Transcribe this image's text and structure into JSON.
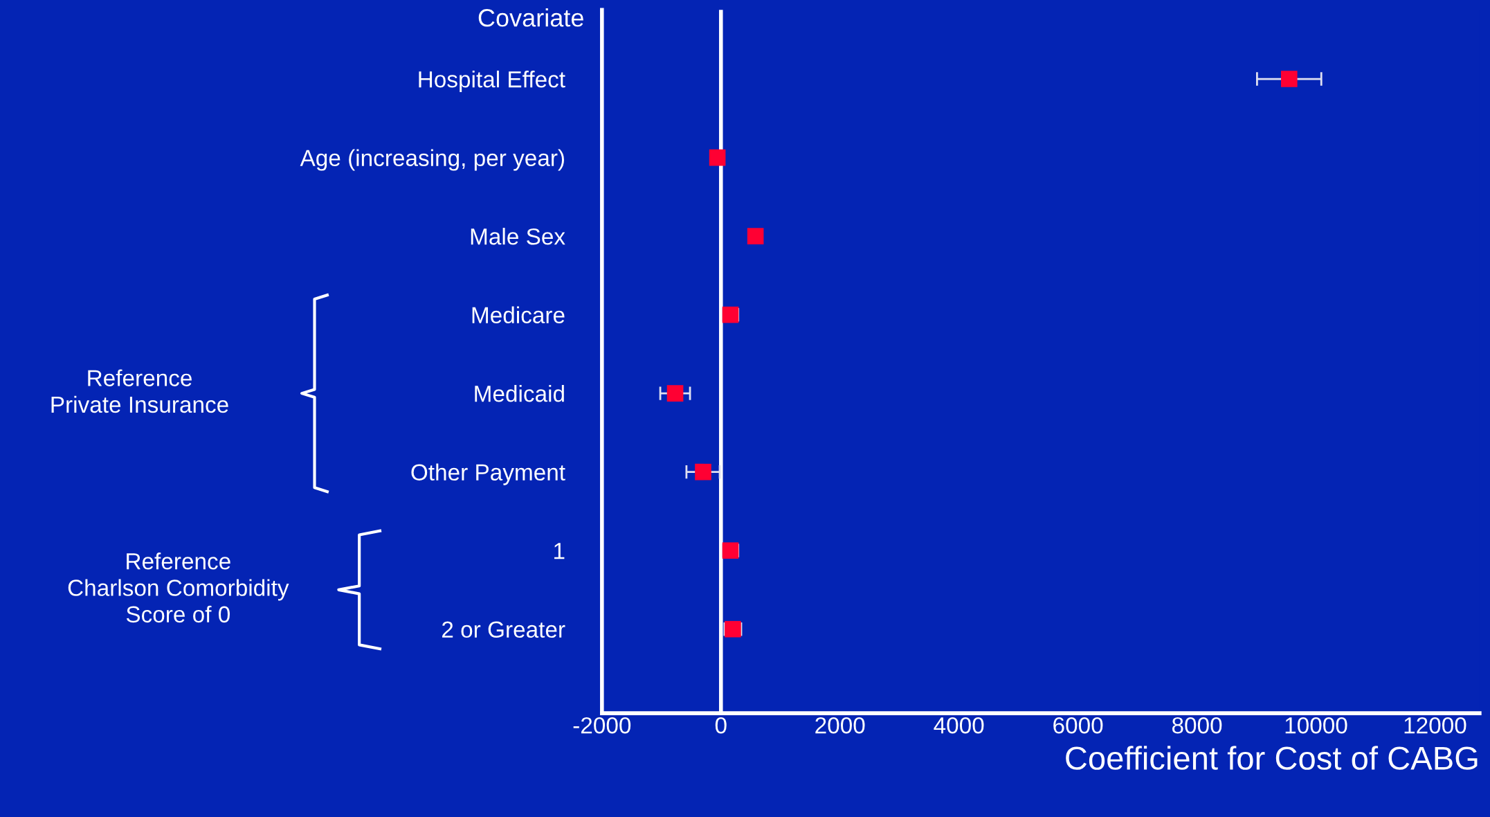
{
  "chart_data": {
    "type": "scatter",
    "xlabel": "Coefficient for Cost of CABG",
    "categories": [
      "Hospital Effect",
      "Age (increasing, per year)",
      "Male Sex",
      "Medicare",
      "Medicaid",
      "Other Payment",
      "1",
      "2 or Greater"
    ],
    "series": [
      {
        "color": "#ff0033",
        "values": [
          9550,
          -60,
          580,
          160,
          -770,
          -300,
          160,
          200
        ],
        "errors": [
          540,
          null,
          null,
          130,
          250,
          280,
          130,
          140
        ]
      }
    ],
    "orientation": "horizontal",
    "marker": "square",
    "xlim": [
      -2000,
      12750
    ],
    "xticks": [
      -2000,
      0,
      2000,
      4000,
      6000,
      8000,
      10000,
      12000
    ],
    "ref_lines": [
      {
        "axis": "x",
        "value": 0,
        "color": "#ffffff"
      }
    ],
    "annotations": [
      "Covariate",
      "Reference\nPrivate Insurance",
      "Reference\nCharlson Comorbidity\nScore of 0"
    ],
    "grid": false,
    "legend": false
  }
}
